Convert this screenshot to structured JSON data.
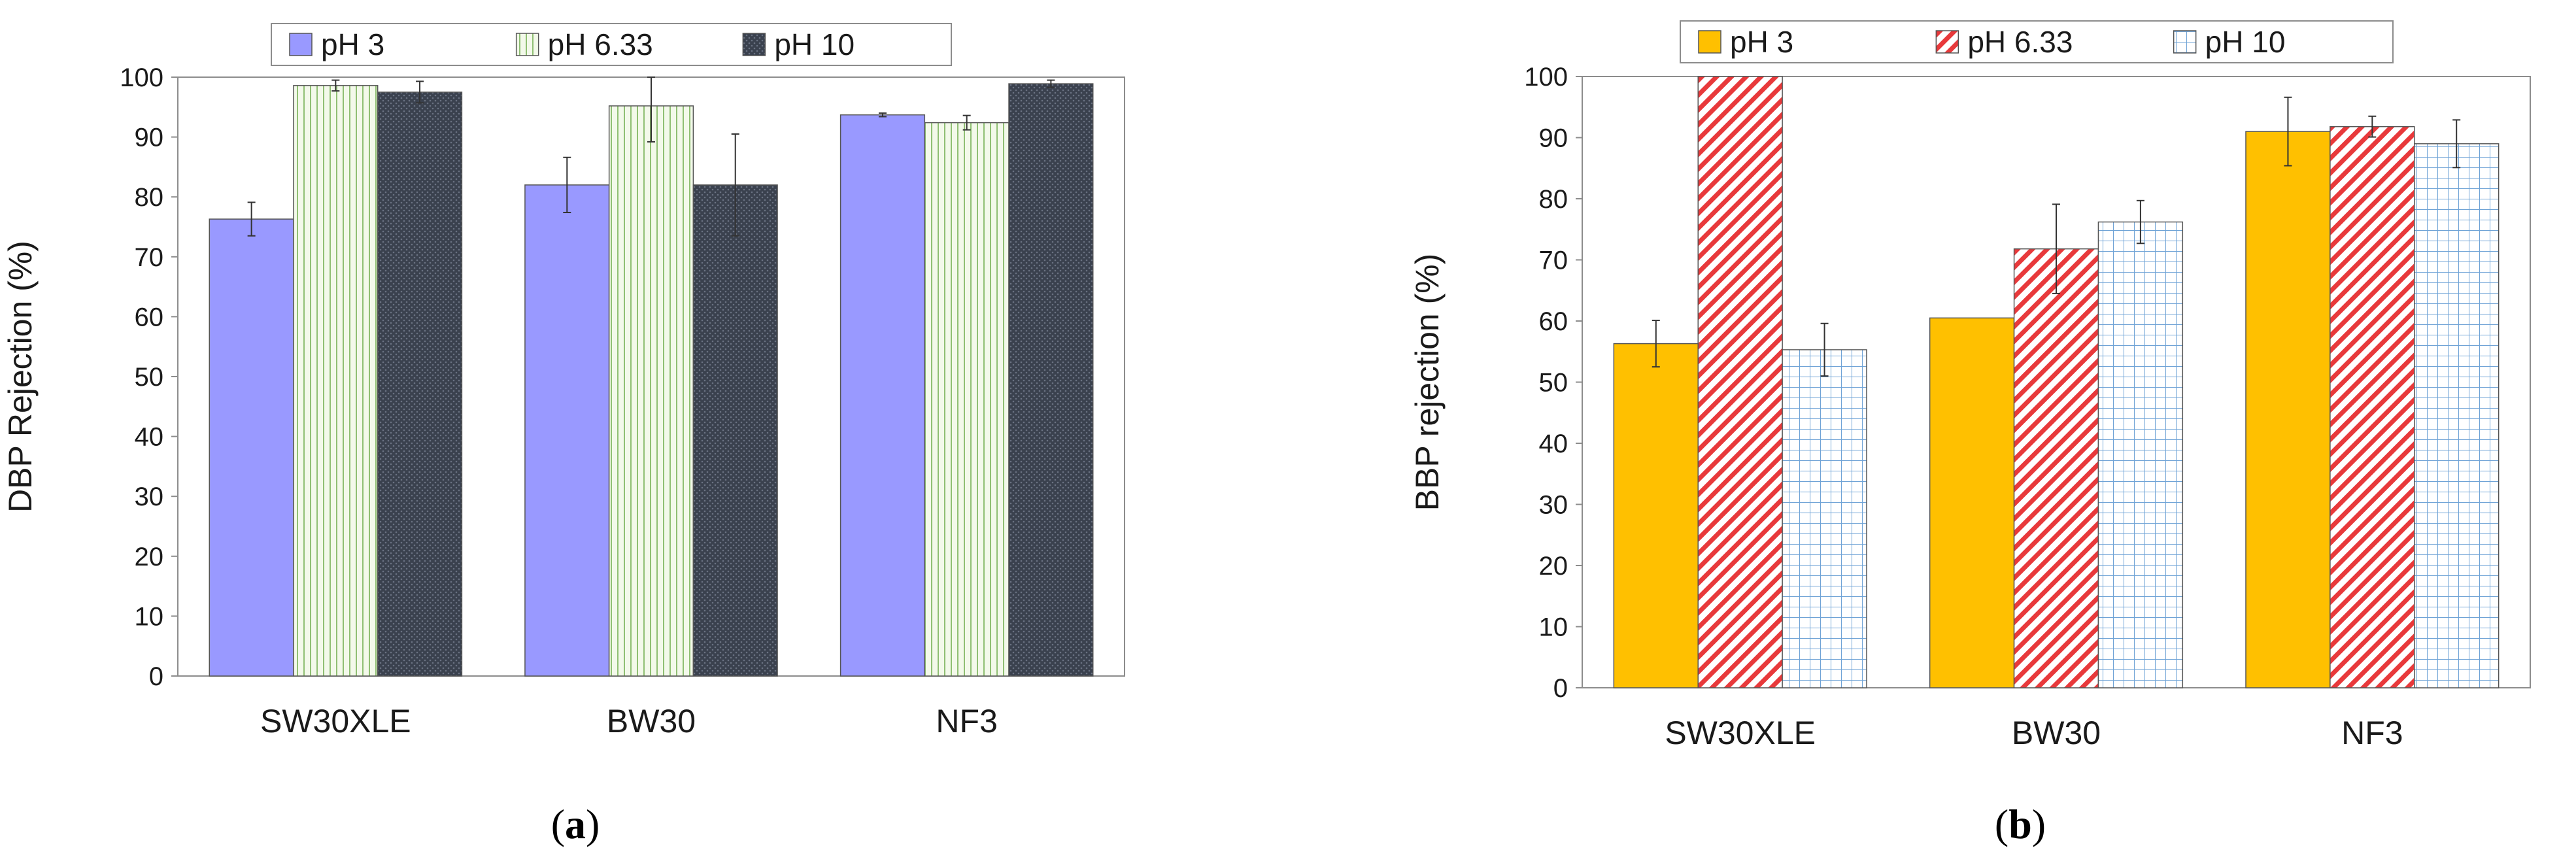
{
  "chart_data": [
    {
      "type": "bar",
      "panel_label": "a",
      "ylabel": "DBP Rejection (%)",
      "xlabel": "",
      "ylim": [
        0,
        100
      ],
      "ytick_step": 10,
      "yticks": [
        "0",
        "10",
        "20",
        "30",
        "40",
        "50",
        "60",
        "70",
        "80",
        "90",
        "100"
      ],
      "grid": false,
      "legend_position": "top",
      "categories": [
        "SW30XLE",
        "BW30",
        "NF3"
      ],
      "series": [
        {
          "name": "pH 3",
          "values": [
            76.3,
            82.0,
            93.7
          ],
          "errors": [
            2.8,
            4.6,
            0.3
          ],
          "color": "#9999ff",
          "pattern": "solid"
        },
        {
          "name": "pH 6.33",
          "values": [
            98.6,
            95.2,
            92.4
          ],
          "errors": [
            0.9,
            6.0,
            1.2
          ],
          "color": "#eaf3dc",
          "pattern": "vertical-lines"
        },
        {
          "name": "pH 10",
          "values": [
            97.5,
            82.0,
            98.9
          ],
          "errors": [
            1.8,
            8.5,
            0.6
          ],
          "color": "#3c4350",
          "pattern": "dots"
        }
      ]
    },
    {
      "type": "bar",
      "panel_label": "b",
      "ylabel": "BBP rejection (%)",
      "xlabel": "",
      "ylim": [
        0,
        100
      ],
      "ytick_step": 10,
      "yticks": [
        "0",
        "10",
        "20",
        "30",
        "40",
        "50",
        "60",
        "70",
        "80",
        "90",
        "100"
      ],
      "grid": false,
      "legend_position": "top",
      "categories": [
        "SW30XLE",
        "BW30",
        "NF3"
      ],
      "series": [
        {
          "name": "pH 3",
          "values": [
            56.3,
            60.5,
            91.0
          ],
          "errors": [
            3.8,
            0.0,
            5.6
          ],
          "color": "#ffc000",
          "pattern": "solid"
        },
        {
          "name": "pH 6.33",
          "values": [
            100.0,
            71.8,
            91.8
          ],
          "errors": [
            0.0,
            7.3,
            1.7
          ],
          "color": "#e8393b",
          "pattern": "diagonal-hatch"
        },
        {
          "name": "pH 10",
          "values": [
            55.3,
            76.2,
            89.0
          ],
          "errors": [
            4.3,
            3.5,
            3.9
          ],
          "color": "#9cc3e6",
          "pattern": "grid"
        }
      ]
    }
  ]
}
